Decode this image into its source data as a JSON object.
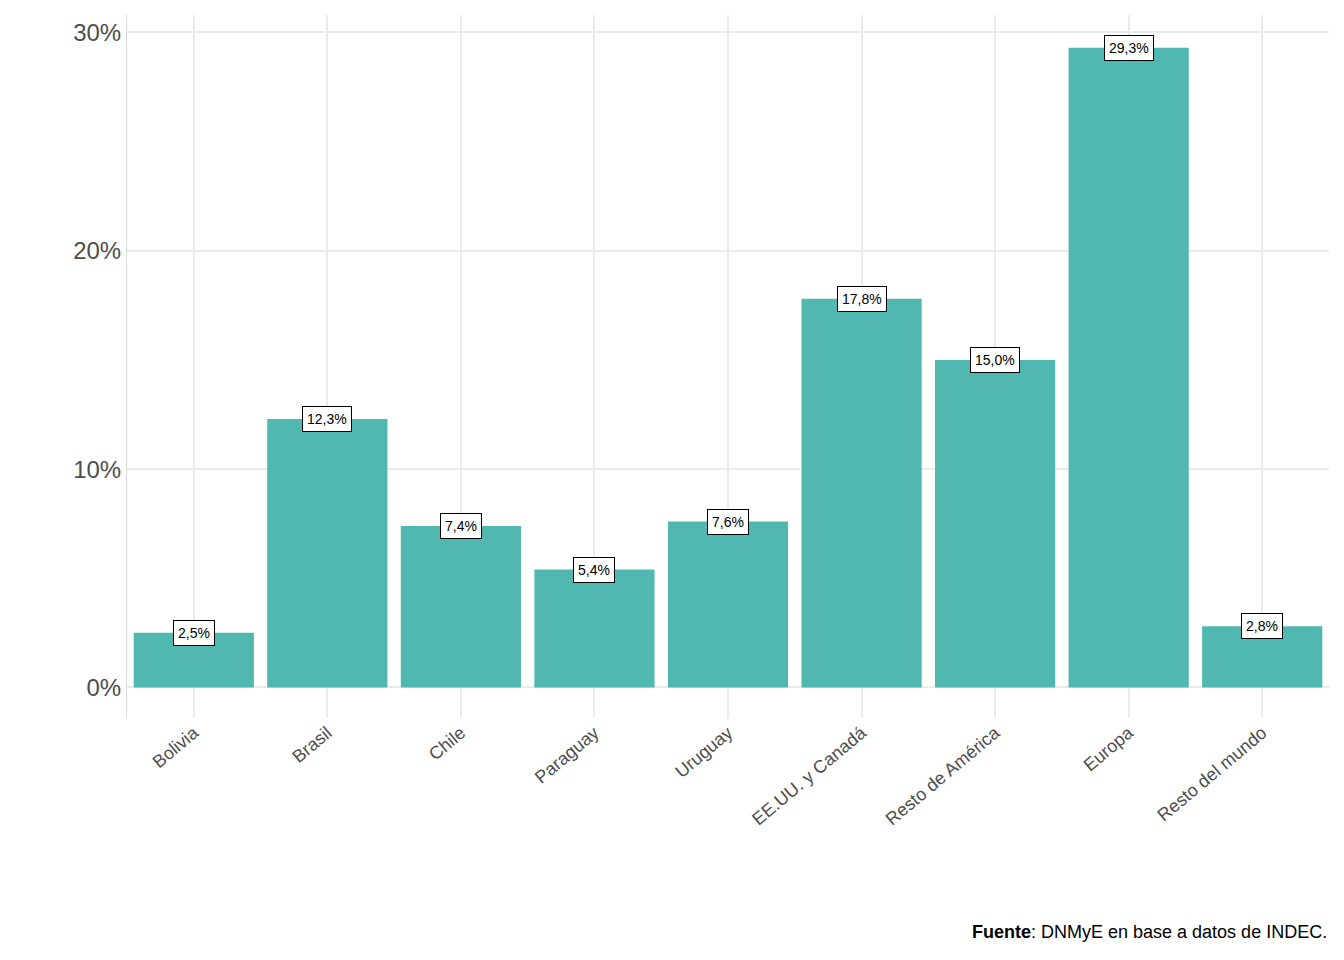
{
  "chart_data": {
    "type": "bar",
    "categories": [
      "Bolivia",
      "Brasil",
      "Chile",
      "Paraguay",
      "Uruguay",
      "EE.UU. y Canadá",
      "Resto de América",
      "Europa",
      "Resto del mundo"
    ],
    "values": [
      2.5,
      12.3,
      7.4,
      5.4,
      7.6,
      17.8,
      15.0,
      29.3,
      2.8
    ],
    "value_labels": [
      "2,5%",
      "12,3%",
      "7,4%",
      "5,4%",
      "7,6%",
      "17,8%",
      "15,0%",
      "29,3%",
      "2,8%"
    ],
    "color": "#50b8b1",
    "ylim": [
      -1.4,
      30.8
    ],
    "yticks": [
      {
        "value": 0,
        "label": "0%"
      },
      {
        "value": 10,
        "label": "10%"
      },
      {
        "value": 20,
        "label": "20%"
      },
      {
        "value": 30,
        "label": "30%"
      }
    ],
    "grid": true,
    "data_labels": true,
    "caption": "Fuente: DNMyE en base a datos de INDEC."
  }
}
